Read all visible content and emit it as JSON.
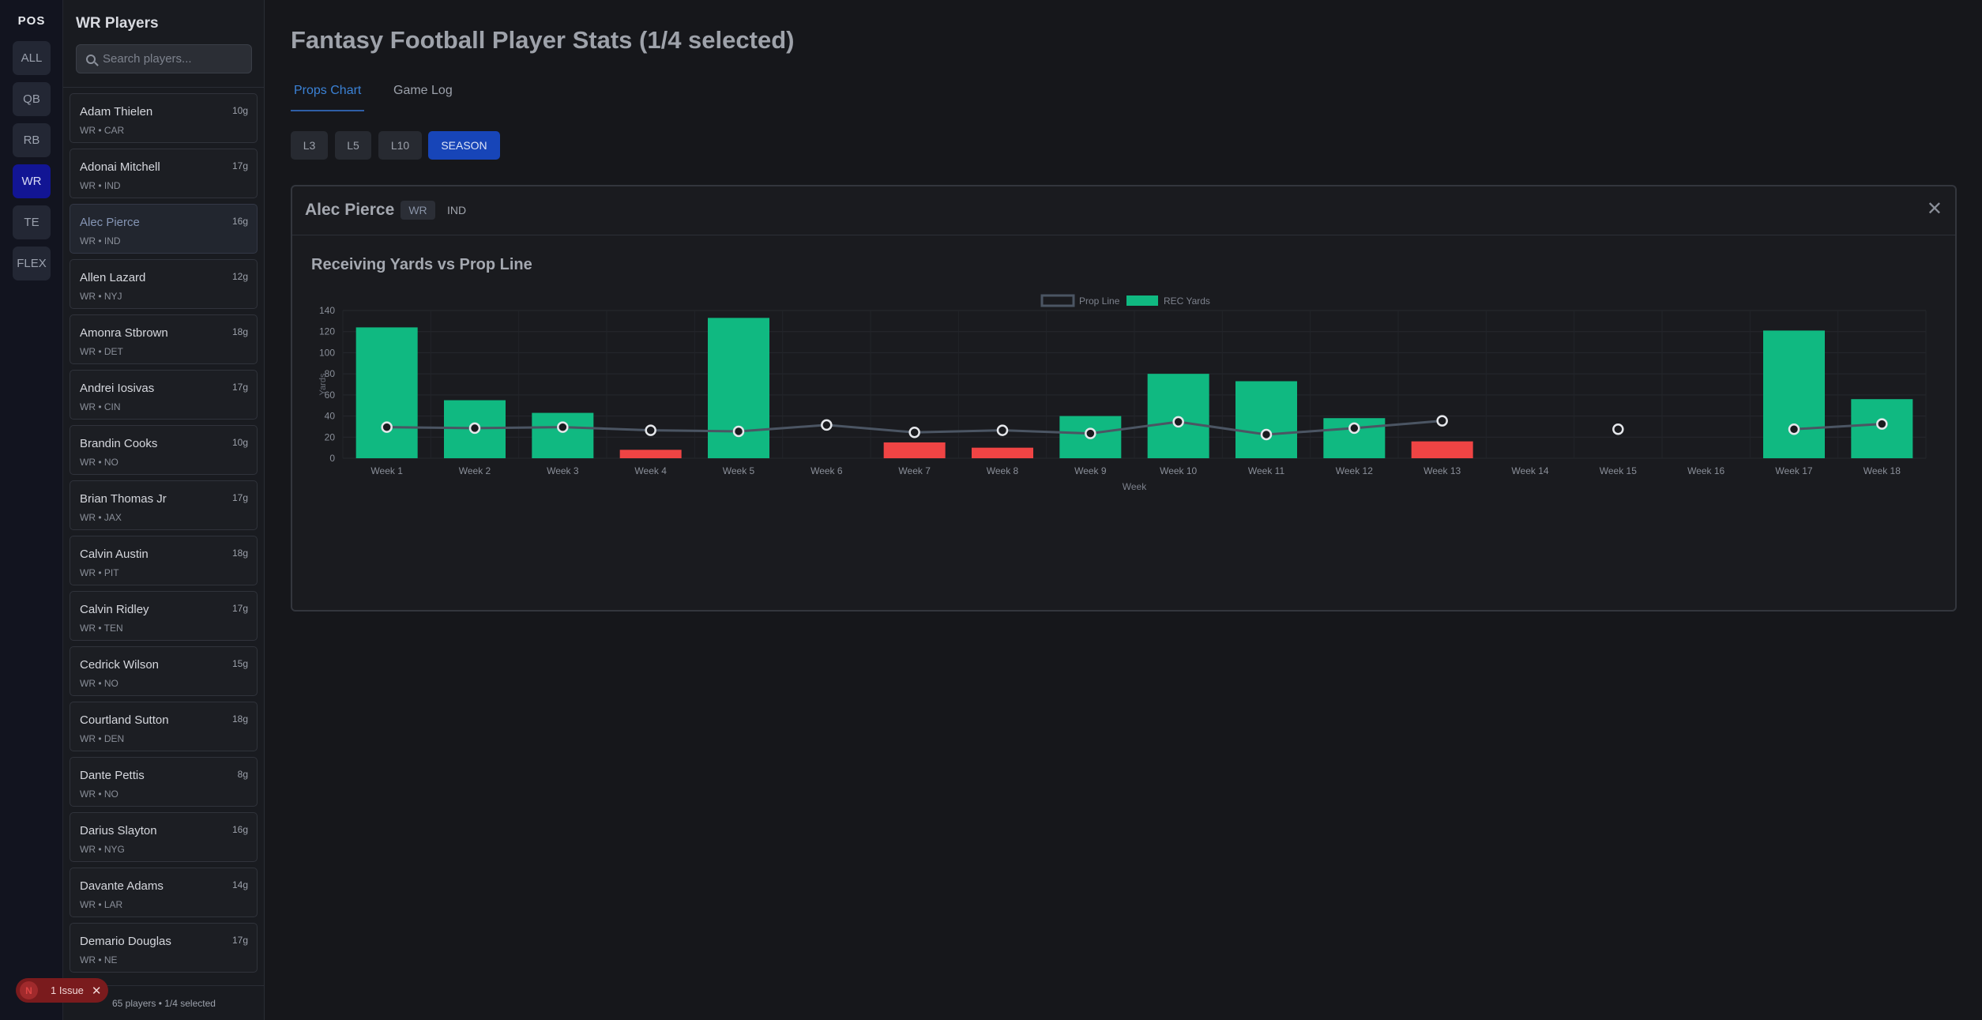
{
  "rail": {
    "title": "POS",
    "positions": [
      "ALL",
      "QB",
      "RB",
      "WR",
      "TE",
      "FLEX"
    ],
    "active": "WR"
  },
  "sidebar": {
    "title": "WR Players",
    "search_placeholder": "Search players...",
    "players": [
      {
        "name": "Adam Thielen",
        "meta": "WR • CAR",
        "games": "10g"
      },
      {
        "name": "Adonai Mitchell",
        "meta": "WR • IND",
        "games": "17g"
      },
      {
        "name": "Alec Pierce",
        "meta": "WR • IND",
        "games": "16g",
        "selected": true
      },
      {
        "name": "Allen Lazard",
        "meta": "WR • NYJ",
        "games": "12g"
      },
      {
        "name": "Amonra Stbrown",
        "meta": "WR • DET",
        "games": "18g"
      },
      {
        "name": "Andrei Iosivas",
        "meta": "WR • CIN",
        "games": "17g"
      },
      {
        "name": "Brandin Cooks",
        "meta": "WR • NO",
        "games": "10g"
      },
      {
        "name": "Brian Thomas Jr",
        "meta": "WR • JAX",
        "games": "17g"
      },
      {
        "name": "Calvin Austin",
        "meta": "WR • PIT",
        "games": "18g"
      },
      {
        "name": "Calvin Ridley",
        "meta": "WR • TEN",
        "games": "17g"
      },
      {
        "name": "Cedrick Wilson",
        "meta": "WR • NO",
        "games": "15g"
      },
      {
        "name": "Courtland Sutton",
        "meta": "WR • DEN",
        "games": "18g"
      },
      {
        "name": "Dante Pettis",
        "meta": "WR • NO",
        "games": "8g"
      },
      {
        "name": "Darius Slayton",
        "meta": "WR • NYG",
        "games": "16g"
      },
      {
        "name": "Davante Adams",
        "meta": "WR • LAR",
        "games": "14g"
      },
      {
        "name": "Demario Douglas",
        "meta": "WR • NE",
        "games": "17g"
      }
    ],
    "footer": "65 players • 1/4 selected"
  },
  "issue": {
    "label": "1 Issue",
    "logo": "N",
    "close": "✕"
  },
  "main": {
    "title": "Fantasy Football Player Stats (1/4 selected)",
    "tabs": [
      "Props Chart",
      "Game Log"
    ],
    "active_tab": "Props Chart",
    "ranges": [
      "L3",
      "L5",
      "L10",
      "SEASON"
    ],
    "active_range": "SEASON"
  },
  "card": {
    "player_name": "Alec Pierce",
    "position": "WR",
    "team": "IND",
    "close": "✕",
    "chart_title": "Receiving Yards vs Prop Line"
  },
  "colors": {
    "over": "#10b981",
    "under": "#ef4444",
    "line": "#4b5563",
    "accent": "#3b82d6"
  },
  "chart_data": {
    "type": "bar",
    "title": "Receiving Yards vs Prop Line",
    "xlabel": "Week",
    "ylabel": "Yards",
    "ylim": [
      0,
      140
    ],
    "yticks": [
      0,
      20,
      40,
      60,
      80,
      100,
      120,
      140
    ],
    "grid": true,
    "legend_position": "top-center",
    "categories": [
      "Week 1",
      "Week 2",
      "Week 3",
      "Week 4",
      "Week 5",
      "Week 6",
      "Week 7",
      "Week 8",
      "Week 9",
      "Week 10",
      "Week 11",
      "Week 12",
      "Week 13",
      "Week 14",
      "Week 15",
      "Week 16",
      "Week 17",
      "Week 18"
    ],
    "series": [
      {
        "name": "REC Yards",
        "kind": "bar",
        "values": [
          124,
          55,
          43,
          8,
          133,
          null,
          15,
          10,
          40,
          80,
          73,
          38,
          16,
          null,
          null,
          null,
          121,
          56
        ]
      },
      {
        "name": "Prop Line",
        "kind": "line",
        "values": [
          29.5,
          28.5,
          29.5,
          26.5,
          25.5,
          31.5,
          24.5,
          26.5,
          23.5,
          34.5,
          22.5,
          28.5,
          35.5,
          null,
          27.5,
          null,
          27.5,
          32.5
        ]
      }
    ]
  }
}
